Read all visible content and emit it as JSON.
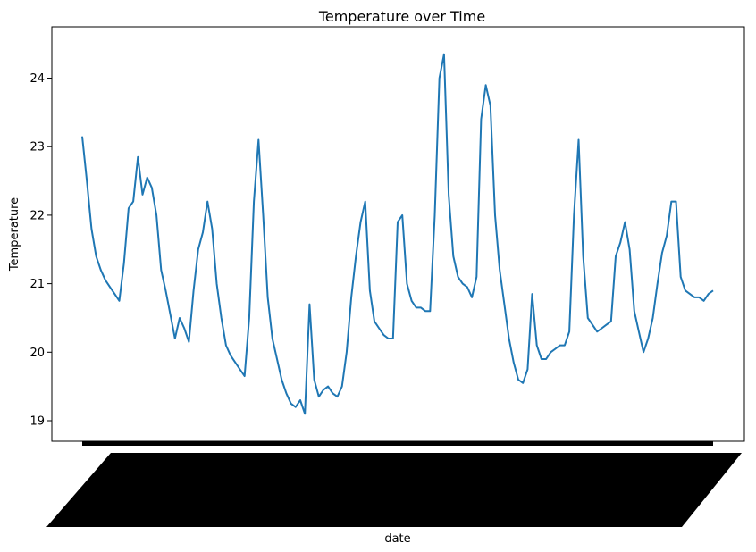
{
  "chart_data": {
    "type": "line",
    "title": "Temperature over Time",
    "xlabel": "date",
    "ylabel": "Temperature",
    "ylim": [
      18.7,
      24.75
    ],
    "yticks": [
      19,
      20,
      21,
      22,
      23,
      24
    ],
    "grid": false,
    "x_tick_labels_note": "dense overlapping rotated date labels (unreadable)",
    "series": [
      {
        "color": "#1f77b4",
        "values": [
          23.15,
          22.5,
          21.8,
          21.4,
          21.2,
          21.05,
          20.95,
          20.85,
          20.75,
          21.3,
          22.1,
          22.2,
          22.85,
          22.3,
          22.55,
          22.4,
          22.0,
          21.2,
          20.9,
          20.55,
          20.2,
          20.5,
          20.35,
          20.15,
          20.9,
          21.5,
          21.75,
          22.2,
          21.8,
          21.0,
          20.5,
          20.1,
          19.95,
          19.85,
          19.75,
          19.65,
          20.5,
          22.2,
          23.1,
          22.0,
          20.8,
          20.2,
          19.9,
          19.6,
          19.4,
          19.25,
          19.2,
          19.3,
          19.1,
          20.7,
          19.6,
          19.35,
          19.45,
          19.5,
          19.4,
          19.35,
          19.5,
          20.0,
          20.8,
          21.4,
          21.9,
          22.2,
          20.9,
          20.45,
          20.35,
          20.25,
          20.2,
          20.2,
          21.9,
          22.0,
          21.0,
          20.75,
          20.65,
          20.65,
          20.6,
          20.6,
          22.0,
          24.0,
          24.35,
          22.3,
          21.4,
          21.1,
          21.0,
          20.95,
          20.8,
          21.1,
          23.4,
          23.9,
          23.6,
          22.0,
          21.2,
          20.7,
          20.2,
          19.85,
          19.6,
          19.55,
          19.75,
          20.85,
          20.1,
          19.9,
          19.9,
          20.0,
          20.05,
          20.1,
          20.1,
          20.3,
          22.0,
          23.1,
          21.4,
          20.5,
          20.4,
          20.3,
          20.35,
          20.4,
          20.45,
          21.4,
          21.6,
          21.9,
          21.5,
          20.6,
          20.3,
          20.0,
          20.2,
          20.5,
          21.0,
          21.45,
          21.7,
          22.2,
          22.2,
          21.1,
          20.9,
          20.85,
          20.8,
          20.8,
          20.75,
          20.85,
          20.9
        ]
      }
    ]
  }
}
